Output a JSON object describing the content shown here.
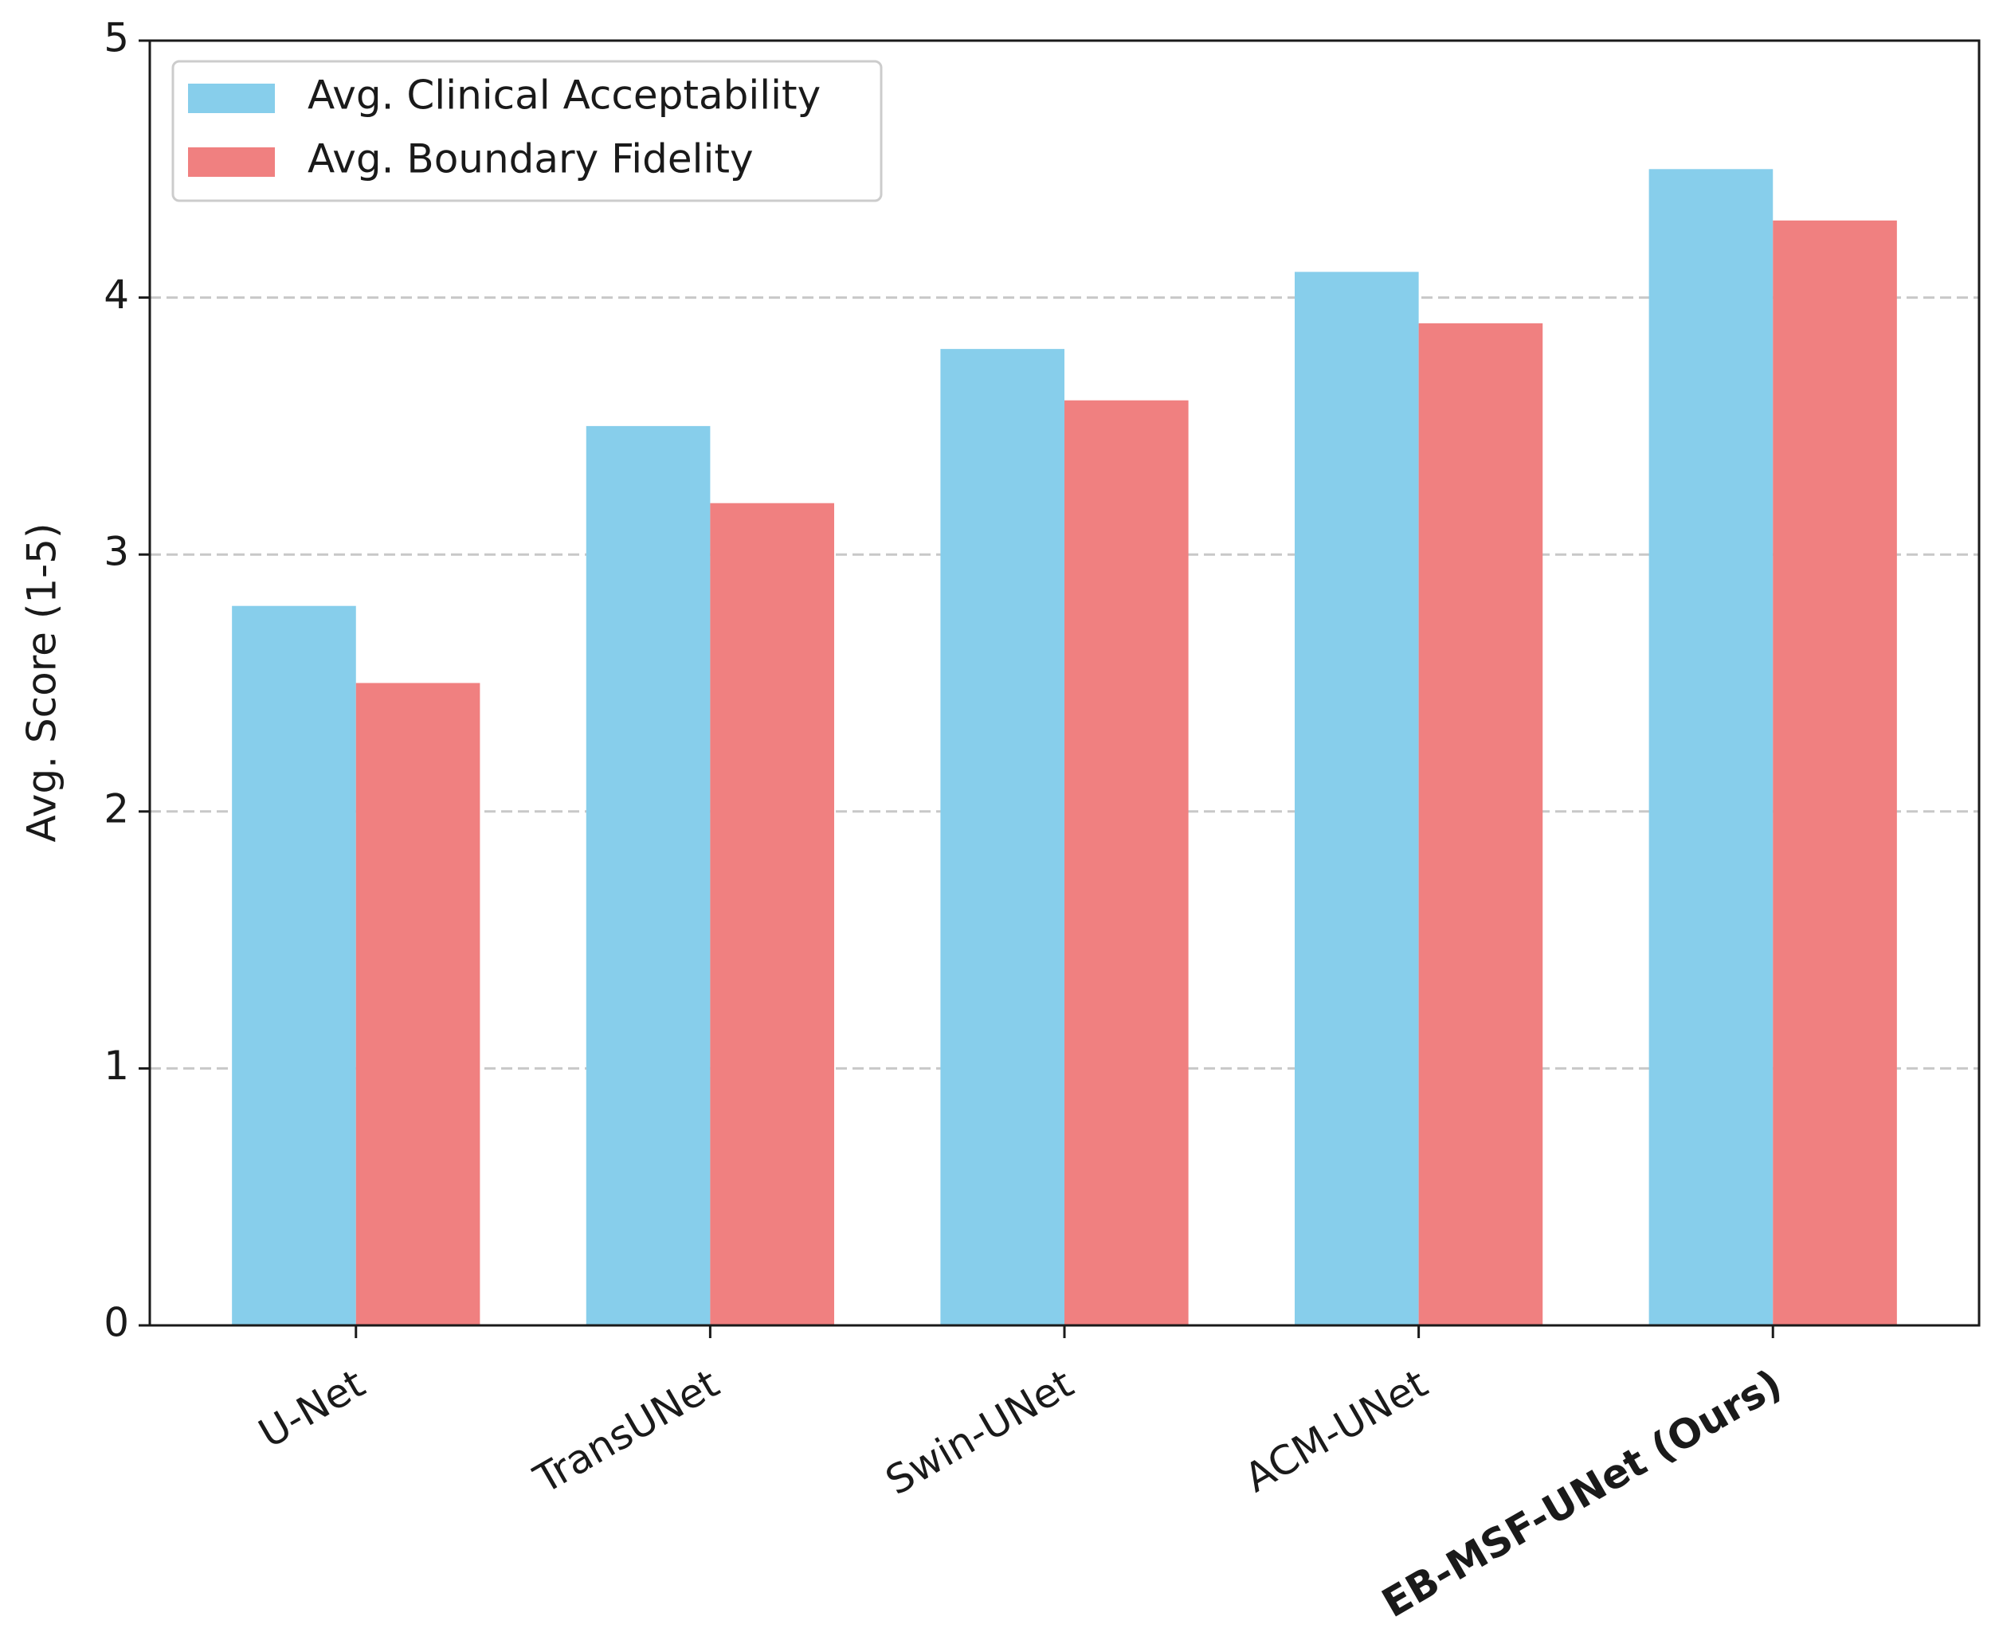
{
  "chart_data": {
    "type": "bar",
    "categories": [
      "U-Net",
      "TransUNet",
      "Swin-UNet",
      "ACM-UNet",
      "EB-MSF-UNet (Ours)"
    ],
    "series": [
      {
        "name": "Avg. Clinical Acceptability",
        "color": "#87ceeb",
        "values": [
          2.8,
          3.5,
          3.8,
          4.1,
          4.5
        ]
      },
      {
        "name": "Avg. Boundary Fidelity",
        "color": "#f08080",
        "values": [
          2.5,
          3.2,
          3.6,
          3.9,
          4.3
        ]
      }
    ],
    "y_label": "Avg. Score (1-5)",
    "ylim": [
      0,
      5
    ],
    "yticks": [
      0,
      1,
      2,
      3,
      4,
      5
    ],
    "grid": true,
    "legend": "upper-left"
  }
}
